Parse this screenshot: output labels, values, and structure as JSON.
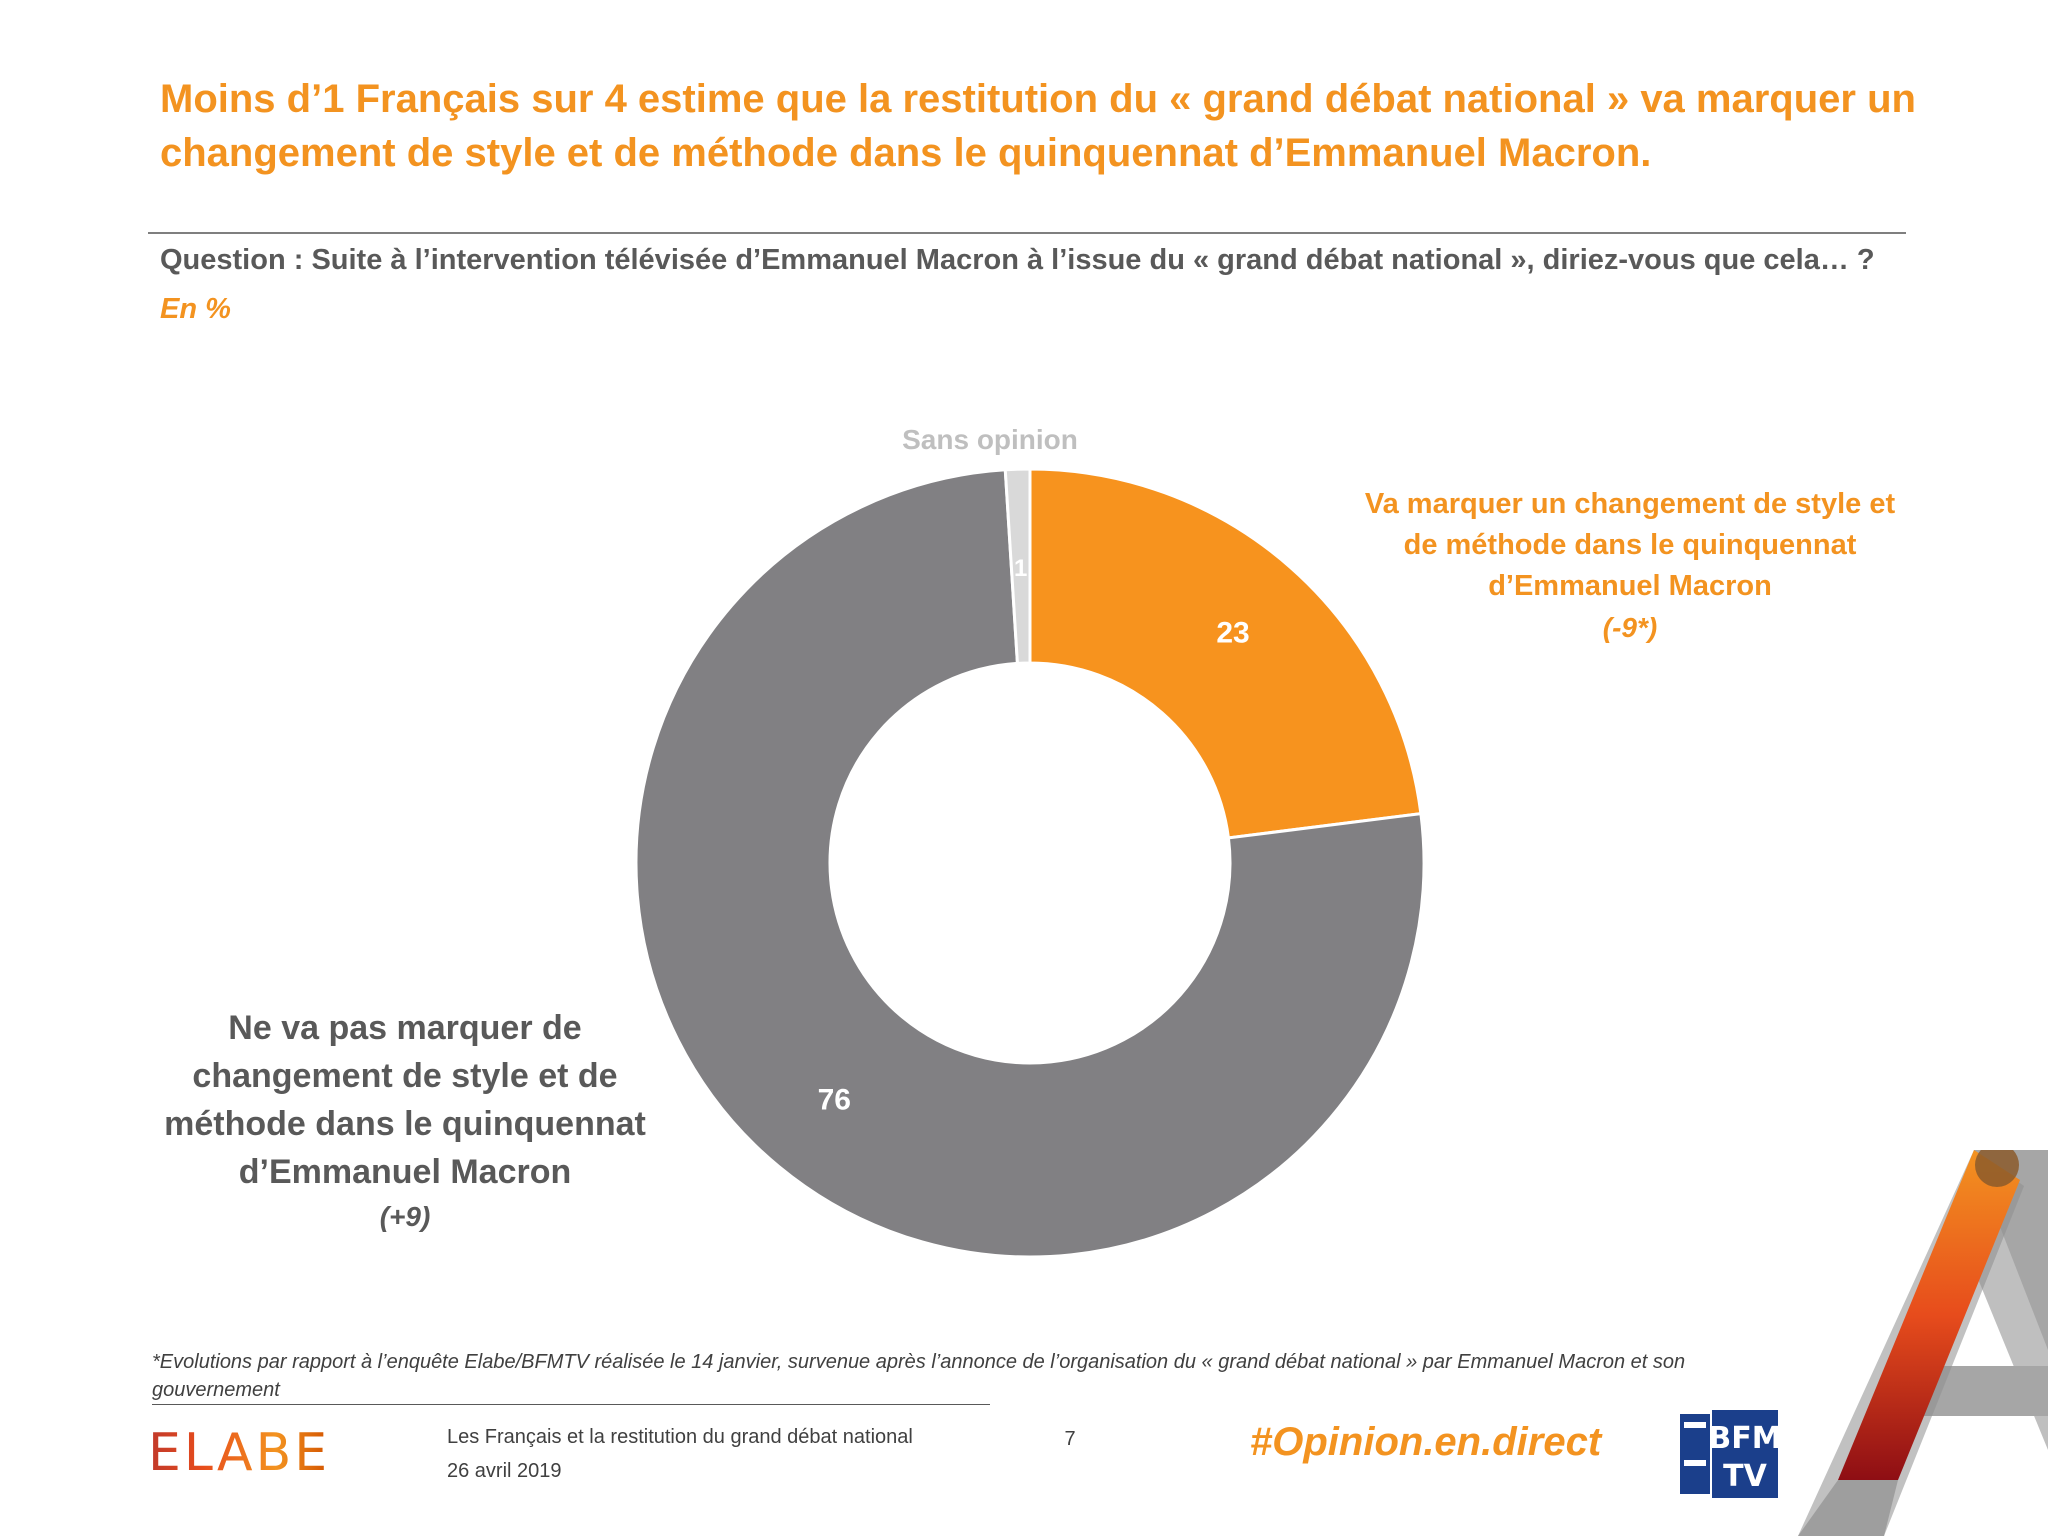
{
  "title": "Moins d’1 Français sur 4 estime que la restitution du « grand débat national » va marquer un changement de style et de méthode dans le quinquennat d’Emmanuel Macron.",
  "question": "Question : Suite à l’intervention télévisée d’Emmanuel Macron à l’issue du « grand débat national », diriez-vous que cela… ?",
  "unit": "En %",
  "chart_data": {
    "type": "pie",
    "donut": true,
    "title": "",
    "unit": "%",
    "slices": [
      {
        "label": "Va marquer un changement de style et de méthode dans le quinquennat d’Emmanuel Macron",
        "value": 23,
        "evolution": "(-9*)",
        "color": "#F7931E"
      },
      {
        "label": "Ne va pas marquer de changement de style et de méthode dans le quinquennat d’Emmanuel Macron",
        "value": 76,
        "evolution": "(+9)",
        "color": "#818083"
      },
      {
        "label": "Sans opinion",
        "value": 1,
        "evolution": "",
        "color": "#D9D9D9"
      }
    ]
  },
  "footnote": "*Evolutions par rapport à l’enquête Elabe/BFMTV réalisée le 14 janvier, survenue après l’annonce de l’organisation du « grand débat national » par Emmanuel Macron et son gouvernement",
  "footer": {
    "logo": "ELABE",
    "study_title": "Les Français et la restitution du grand débat national",
    "date": "26 avril 2019",
    "page_number": "7",
    "hashtag": "#Opinion.en.direct",
    "partner_logo": "BFM TV",
    "partner_logo_line1": "BFM",
    "partner_logo_line2": "TV"
  }
}
